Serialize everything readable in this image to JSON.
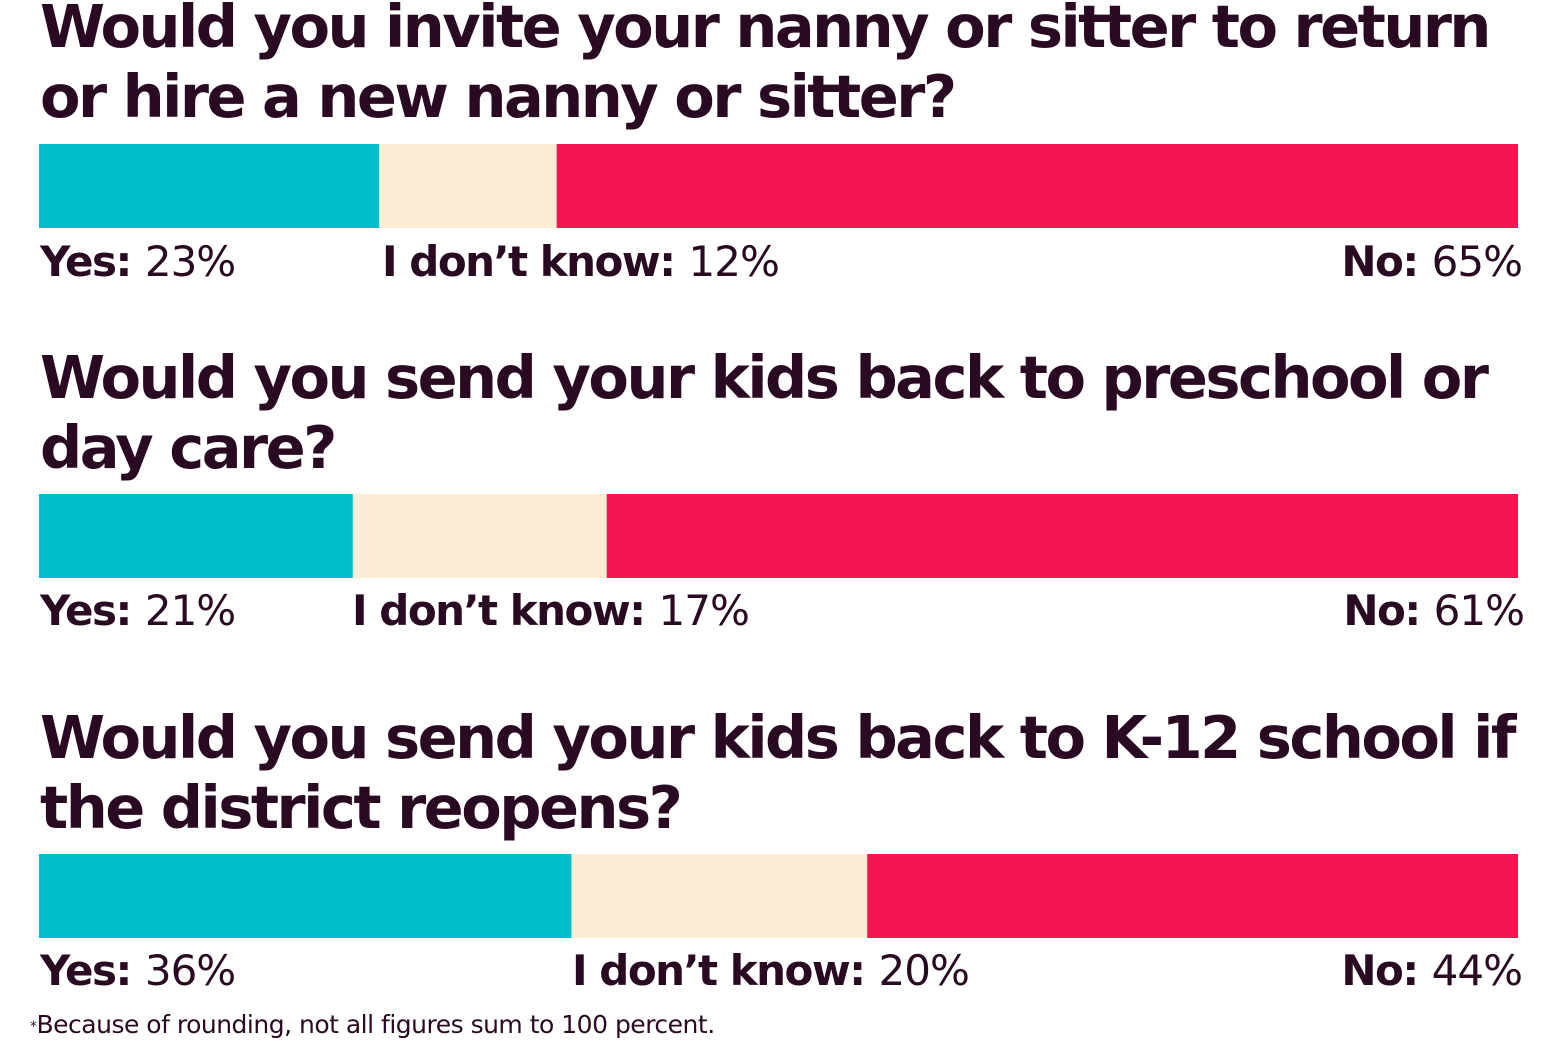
{
  "chart_data": {
    "type": "stacked_bar",
    "categories": [
      "Yes",
      "I don’t know",
      "No"
    ],
    "colors": {
      "Yes": "#00bec8",
      "I don’t know": "#fbecd4",
      "No": "#f31651"
    },
    "panels": [
      {
        "question": "Would you invite your nanny or sitter to return or hire a new nanny or sitter?",
        "values": [
          23,
          12,
          65
        ],
        "labels": [
          {
            "key": "Yes:",
            "value": "23%"
          },
          {
            "key": "I don’t know:",
            "value": "12%"
          },
          {
            "key": "No:",
            "value": "65%"
          }
        ]
      },
      {
        "question": "Would you send your kids back to preschool or day care?",
        "values": [
          21,
          17,
          61
        ],
        "labels": [
          {
            "key": "Yes:",
            "value": "21%"
          },
          {
            "key": "I don’t know:",
            "value": "17%"
          },
          {
            "key": "No:",
            "value": "61%"
          }
        ]
      },
      {
        "question": "Would you send your kids back to K-12 school if the district reopens?",
        "values": [
          36,
          20,
          44
        ],
        "labels": [
          {
            "key": "Yes:",
            "value": "36%"
          },
          {
            "key": "I don’t know:",
            "value": "20%"
          },
          {
            "key": "No:",
            "value": "44%"
          }
        ]
      }
    ],
    "footnote_mark": "*",
    "footnote": "Because of rounding, not all figures sum to 100 percent."
  }
}
